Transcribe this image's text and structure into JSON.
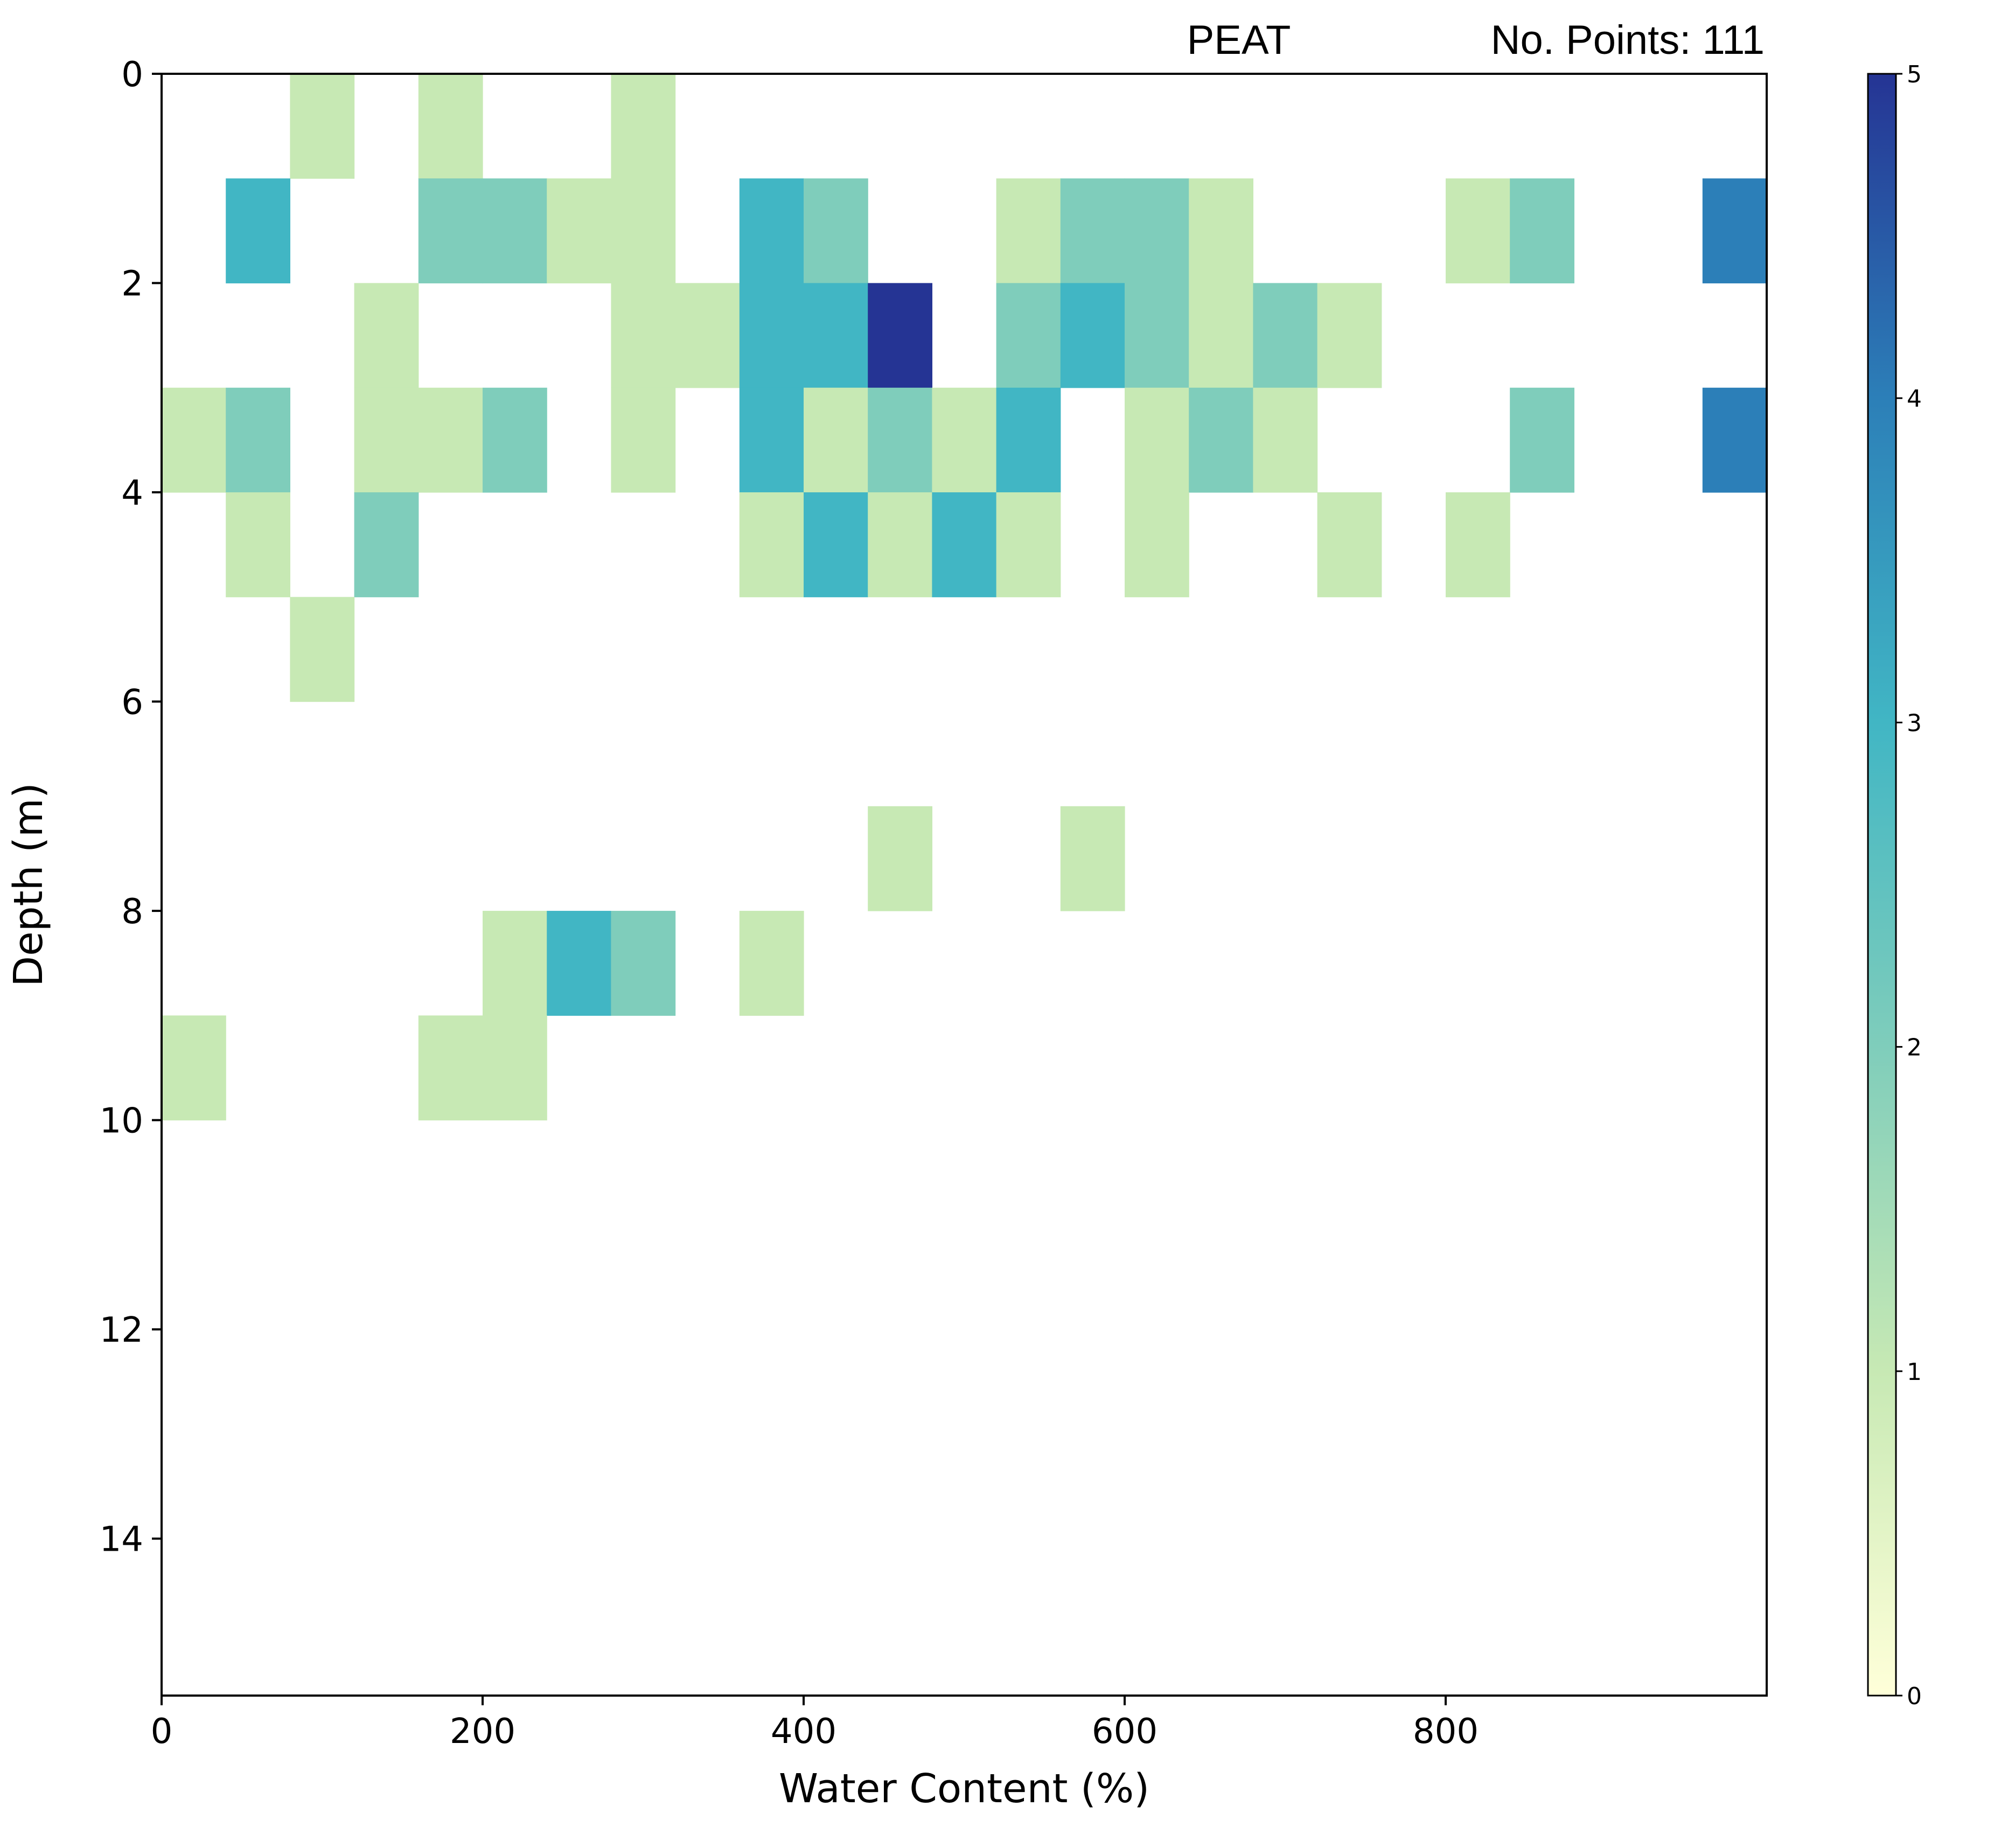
{
  "chart_data": {
    "type": "heatmap",
    "xlabel": "Water Content (%)",
    "ylabel": "Depth (m)",
    "xlim": [
      0,
      1000
    ],
    "ylim": [
      15.5,
      0
    ],
    "y_inverted": true,
    "bin_width_x": 40,
    "bin_height_y": 1,
    "x_ticks": [
      0,
      200,
      400,
      600,
      800
    ],
    "x_tick_labels": [
      "0",
      "200",
      "400",
      "600",
      "800"
    ],
    "y_ticks": [
      0,
      2,
      4,
      6,
      8,
      10,
      12,
      14
    ],
    "y_tick_labels": [
      "0",
      "2",
      "4",
      "6",
      "8",
      "10",
      "12",
      "14"
    ],
    "annotations": {
      "soil_type": "PEAT",
      "points": "No. Points: 111"
    },
    "colorbar": {
      "colormap": "YlGnBu",
      "min": 0,
      "max": 5,
      "ticks": [
        0,
        1,
        2,
        3,
        4,
        5
      ],
      "tick_labels": [
        "0",
        "1",
        "2",
        "3",
        "4",
        "5"
      ],
      "colors": [
        "#ffffd9",
        "#c7e9b4",
        "#7fcdbb",
        "#41b6c4",
        "#2c7fb8",
        "#253494"
      ]
    },
    "grid": false,
    "cells": [
      {
        "x": 80,
        "y": 0,
        "count": 1
      },
      {
        "x": 160,
        "y": 0,
        "count": 1
      },
      {
        "x": 280,
        "y": 0,
        "count": 1
      },
      {
        "x": 40,
        "y": 1,
        "count": 3
      },
      {
        "x": 160,
        "y": 1,
        "count": 2
      },
      {
        "x": 200,
        "y": 1,
        "count": 2
      },
      {
        "x": 240,
        "y": 1,
        "count": 1
      },
      {
        "x": 280,
        "y": 1,
        "count": 1
      },
      {
        "x": 360,
        "y": 1,
        "count": 3
      },
      {
        "x": 400,
        "y": 1,
        "count": 2
      },
      {
        "x": 520,
        "y": 1,
        "count": 1
      },
      {
        "x": 560,
        "y": 1,
        "count": 2
      },
      {
        "x": 600,
        "y": 1,
        "count": 2
      },
      {
        "x": 640,
        "y": 1,
        "count": 1
      },
      {
        "x": 800,
        "y": 1,
        "count": 1
      },
      {
        "x": 840,
        "y": 1,
        "count": 2
      },
      {
        "x": 960,
        "y": 1,
        "count": 4
      },
      {
        "x": 120,
        "y": 2,
        "count": 1
      },
      {
        "x": 280,
        "y": 2,
        "count": 1
      },
      {
        "x": 320,
        "y": 2,
        "count": 1
      },
      {
        "x": 360,
        "y": 2,
        "count": 3
      },
      {
        "x": 400,
        "y": 2,
        "count": 3
      },
      {
        "x": 440,
        "y": 2,
        "count": 5
      },
      {
        "x": 520,
        "y": 2,
        "count": 2
      },
      {
        "x": 560,
        "y": 2,
        "count": 3
      },
      {
        "x": 600,
        "y": 2,
        "count": 2
      },
      {
        "x": 640,
        "y": 2,
        "count": 1
      },
      {
        "x": 680,
        "y": 2,
        "count": 2
      },
      {
        "x": 720,
        "y": 2,
        "count": 1
      },
      {
        "x": 0,
        "y": 3,
        "count": 1
      },
      {
        "x": 40,
        "y": 3,
        "count": 2
      },
      {
        "x": 120,
        "y": 3,
        "count": 1
      },
      {
        "x": 160,
        "y": 3,
        "count": 1
      },
      {
        "x": 200,
        "y": 3,
        "count": 2
      },
      {
        "x": 280,
        "y": 3,
        "count": 1
      },
      {
        "x": 360,
        "y": 3,
        "count": 3
      },
      {
        "x": 400,
        "y": 3,
        "count": 1
      },
      {
        "x": 440,
        "y": 3,
        "count": 2
      },
      {
        "x": 480,
        "y": 3,
        "count": 1
      },
      {
        "x": 520,
        "y": 3,
        "count": 3
      },
      {
        "x": 600,
        "y": 3,
        "count": 1
      },
      {
        "x": 640,
        "y": 3,
        "count": 2
      },
      {
        "x": 680,
        "y": 3,
        "count": 1
      },
      {
        "x": 840,
        "y": 3,
        "count": 2
      },
      {
        "x": 960,
        "y": 3,
        "count": 4
      },
      {
        "x": 40,
        "y": 4,
        "count": 1
      },
      {
        "x": 120,
        "y": 4,
        "count": 2
      },
      {
        "x": 360,
        "y": 4,
        "count": 1
      },
      {
        "x": 400,
        "y": 4,
        "count": 3
      },
      {
        "x": 440,
        "y": 4,
        "count": 1
      },
      {
        "x": 480,
        "y": 4,
        "count": 3
      },
      {
        "x": 520,
        "y": 4,
        "count": 1
      },
      {
        "x": 600,
        "y": 4,
        "count": 1
      },
      {
        "x": 720,
        "y": 4,
        "count": 1
      },
      {
        "x": 800,
        "y": 4,
        "count": 1
      },
      {
        "x": 80,
        "y": 5,
        "count": 1
      },
      {
        "x": 440,
        "y": 7,
        "count": 1
      },
      {
        "x": 560,
        "y": 7,
        "count": 1
      },
      {
        "x": 200,
        "y": 8,
        "count": 1
      },
      {
        "x": 240,
        "y": 8,
        "count": 3
      },
      {
        "x": 280,
        "y": 8,
        "count": 2
      },
      {
        "x": 360,
        "y": 8,
        "count": 1
      },
      {
        "x": 0,
        "y": 9,
        "count": 1
      },
      {
        "x": 160,
        "y": 9,
        "count": 1
      },
      {
        "x": 200,
        "y": 9,
        "count": 1
      }
    ]
  }
}
